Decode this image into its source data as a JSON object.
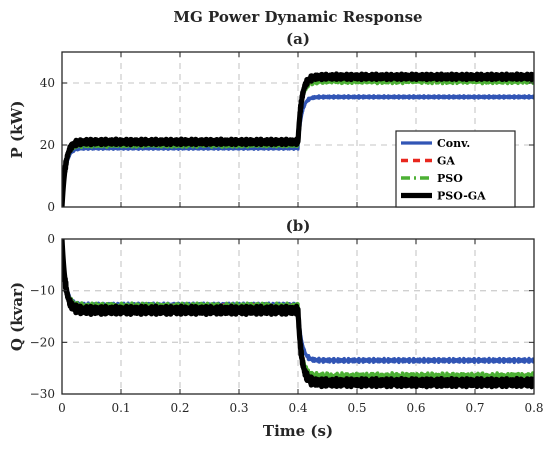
{
  "title": "MG Power Dynamic Response",
  "colors": {
    "Conv.": "#3155b5",
    "GA": "#e8271e",
    "PSO": "#4cb034",
    "PSO-GA": "#000000"
  },
  "chart_data": [
    {
      "type": "line",
      "panel_label": "(a)",
      "xlabel": "",
      "ylabel": "P (kW)",
      "xlim": [
        0,
        0.8
      ],
      "ylim": [
        0,
        50
      ],
      "x_ticks": [
        0,
        0.1,
        0.2,
        0.3,
        0.4,
        0.5,
        0.6,
        0.7,
        0.8
      ],
      "y_ticks": [
        0,
        20,
        40
      ],
      "y_tick_labels": [
        "0",
        "20",
        "40"
      ],
      "grid": true,
      "legend": "right",
      "series": [
        {
          "name": "Conv.",
          "style": "solid",
          "initial": 0,
          "level1": 19.0,
          "level2": 35.5,
          "step_time": 0.4,
          "ripple": 0.4
        },
        {
          "name": "GA",
          "style": "dashed",
          "initial": 0,
          "level1": 20.5,
          "level2": 41.0,
          "step_time": 0.4,
          "ripple": 0.5
        },
        {
          "name": "PSO",
          "style": "dashdot",
          "initial": 0,
          "level1": 20.0,
          "level2": 40.5,
          "step_time": 0.4,
          "ripple": 0.7
        },
        {
          "name": "PSO-GA",
          "style": "solid",
          "initial": 0,
          "level1": 21.0,
          "level2": 42.0,
          "step_time": 0.4,
          "ripple": 0.9
        }
      ]
    },
    {
      "type": "line",
      "panel_label": "(b)",
      "xlabel": "Time (s)",
      "ylabel": "Q (kvar)",
      "xlim": [
        0,
        0.8
      ],
      "ylim": [
        -30,
        0
      ],
      "x_ticks": [
        0,
        0.1,
        0.2,
        0.3,
        0.4,
        0.5,
        0.6,
        0.7,
        0.8
      ],
      "x_tick_labels": [
        "0",
        "0.1",
        "0.2",
        "0.3",
        "0.4",
        "0.5",
        "0.6",
        "0.7",
        "0.8"
      ],
      "y_ticks": [
        -30,
        -20,
        -10,
        0
      ],
      "y_tick_labels": [
        "−30",
        "−20",
        "−10",
        "0"
      ],
      "grid": true,
      "series": [
        {
          "name": "Conv.",
          "style": "solid",
          "initial": 0,
          "level1": -12.8,
          "level2": -23.5,
          "step_time": 0.4,
          "ripple": 0.4
        },
        {
          "name": "GA",
          "style": "dashed",
          "initial": 0,
          "level1": -13.2,
          "level2": -26.8,
          "step_time": 0.4,
          "ripple": 0.5
        },
        {
          "name": "PSO",
          "style": "dashdot",
          "initial": 0,
          "level1": -13.0,
          "level2": -26.5,
          "step_time": 0.4,
          "ripple": 0.6
        },
        {
          "name": "PSO-GA",
          "style": "solid",
          "initial": 0,
          "level1": -13.8,
          "level2": -27.8,
          "step_time": 0.4,
          "ripple": 0.8
        }
      ]
    }
  ]
}
